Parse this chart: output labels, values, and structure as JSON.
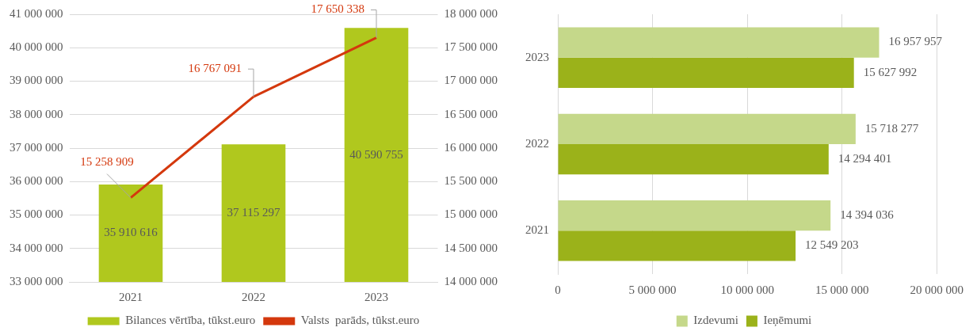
{
  "chart_data": [
    {
      "type": "bar",
      "categories": [
        "2021",
        "2022",
        "2023"
      ],
      "series": [
        {
          "name": "Bilances vērtība, tūkst.euro",
          "color": "#b0c81e",
          "values": [
            35910616,
            37115297,
            40590755
          ],
          "value_labels": [
            "35 910 616",
            "37 115 297",
            "40 590 755"
          ]
        },
        {
          "name": "Valsts  parāds, tūkst.euro",
          "type": "line",
          "axis": "y2",
          "color": "#d4380d",
          "values": [
            15258909,
            16767091,
            17650338
          ],
          "value_labels": [
            "15 258 909",
            "16 767 091",
            "17 650 338"
          ]
        }
      ],
      "ylim": [
        33000000,
        41000000
      ],
      "yticks": [
        {
          "value": 33000000,
          "label": "33 000 000"
        },
        {
          "value": 34000000,
          "label": "34 000 000"
        },
        {
          "value": 35000000,
          "label": "35 000 000"
        },
        {
          "value": 36000000,
          "label": "36 000 000"
        },
        {
          "value": 37000000,
          "label": "37 000 000"
        },
        {
          "value": 38000000,
          "label": "38 000 000"
        },
        {
          "value": 39000000,
          "label": "39 000 000"
        },
        {
          "value": 40000000,
          "label": "40 000 000"
        },
        {
          "value": 41000000,
          "label": "41 000 000"
        }
      ],
      "y2lim": [
        14000000,
        18000000
      ],
      "y2ticks": [
        {
          "value": 14000000,
          "label": "14 000 000"
        },
        {
          "value": 14500000,
          "label": "14 500 000"
        },
        {
          "value": 15000000,
          "label": "15 000 000"
        },
        {
          "value": 15500000,
          "label": "15 500 000"
        },
        {
          "value": 16000000,
          "label": "16 000 000"
        },
        {
          "value": 16500000,
          "label": "16 500 000"
        },
        {
          "value": 17000000,
          "label": "17 000 000"
        },
        {
          "value": 17500000,
          "label": "17 500 000"
        },
        {
          "value": 18000000,
          "label": "18 000 000"
        }
      ],
      "grid": "y",
      "legend": "bottom",
      "marker": "none"
    },
    {
      "type": "bar",
      "orientation": "horizontal",
      "categories": [
        "2023",
        "2022",
        "2021"
      ],
      "series": [
        {
          "name": "Izdevumi",
          "color": "#c5d88a",
          "values": [
            16957957,
            15718277,
            14394036
          ],
          "value_labels": [
            "16 957 957",
            "15 718 277",
            "14 394 036"
          ]
        },
        {
          "name": "Ieņēmumi",
          "color": "#9bb21a",
          "values": [
            15627992,
            14294401,
            12549203
          ],
          "value_labels": [
            "15 627 992",
            "14 294 401",
            "12 549 203"
          ]
        }
      ],
      "xlim": [
        0,
        20000000
      ],
      "xticks": [
        {
          "value": 0,
          "label": "0"
        },
        {
          "value": 5000000,
          "label": "5 000 000"
        },
        {
          "value": 10000000,
          "label": "10 000 000"
        },
        {
          "value": 15000000,
          "label": "15 000 000"
        },
        {
          "value": 20000000,
          "label": "20 000 000"
        }
      ],
      "grid": "x",
      "legend": "bottom"
    }
  ]
}
